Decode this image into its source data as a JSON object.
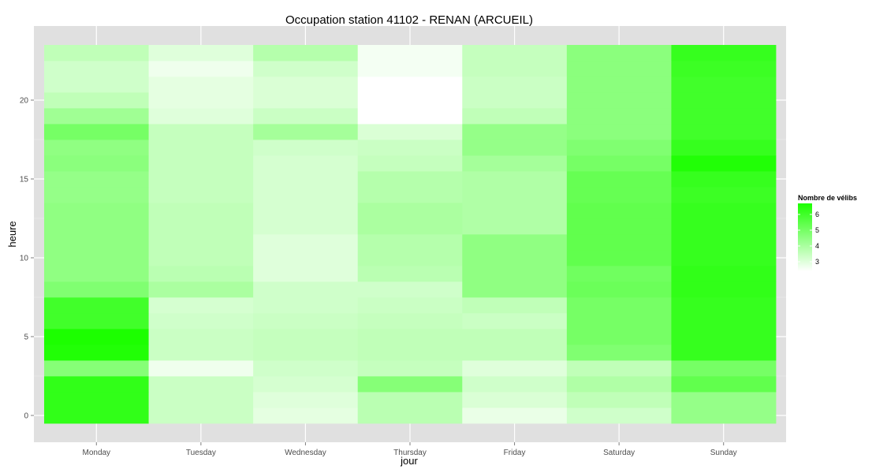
{
  "chart_data": {
    "type": "heatmap",
    "title": "Occupation station 41102 - RENAN (ARCUEIL)",
    "xlabel": "jour",
    "ylabel": "heure",
    "categories": [
      "Monday",
      "Tuesday",
      "Wednesday",
      "Thursday",
      "Friday",
      "Saturday",
      "Sunday"
    ],
    "y": [
      0,
      1,
      2,
      3,
      4,
      5,
      6,
      7,
      8,
      9,
      10,
      11,
      12,
      13,
      14,
      15,
      16,
      17,
      18,
      19,
      20,
      21,
      22,
      23
    ],
    "y_ticks": [
      0,
      5,
      10,
      15,
      20
    ],
    "ylim": [
      -0.5,
      23.5
    ],
    "grid": true,
    "values": [
      [
        6.3,
        3.4,
        2.9,
        3.7,
        2.8,
        3.3,
        4.4
      ],
      [
        6.3,
        3.4,
        3.0,
        3.7,
        3.1,
        3.6,
        4.4
      ],
      [
        6.3,
        3.4,
        3.2,
        4.7,
        3.3,
        3.9,
        5.4
      ],
      [
        4.7,
        2.7,
        3.3,
        3.5,
        3.0,
        3.6,
        5.0
      ],
      [
        6.6,
        3.4,
        3.5,
        3.6,
        3.6,
        4.8,
        6.2
      ],
      [
        6.7,
        3.4,
        3.5,
        3.6,
        3.6,
        5.0,
        6.2
      ],
      [
        6.0,
        3.3,
        3.4,
        3.5,
        3.4,
        5.0,
        6.2
      ],
      [
        6.0,
        3.2,
        3.3,
        3.4,
        3.6,
        5.0,
        6.2
      ],
      [
        4.8,
        4.0,
        3.3,
        3.3,
        4.5,
        5.2,
        6.3
      ],
      [
        4.5,
        3.7,
        3.0,
        3.7,
        4.5,
        5.1,
        6.3
      ],
      [
        4.5,
        3.6,
        3.0,
        3.8,
        4.5,
        5.4,
        6.2
      ],
      [
        4.5,
        3.6,
        3.0,
        3.8,
        4.5,
        5.4,
        6.2
      ],
      [
        4.5,
        3.6,
        3.2,
        4.0,
        3.9,
        5.4,
        6.2
      ],
      [
        4.5,
        3.6,
        3.2,
        4.0,
        3.9,
        5.4,
        6.2
      ],
      [
        4.4,
        3.5,
        3.2,
        3.8,
        3.9,
        5.3,
        6.1
      ],
      [
        4.4,
        3.5,
        3.2,
        3.8,
        3.9,
        5.3,
        6.2
      ],
      [
        4.6,
        3.5,
        3.2,
        3.5,
        4.1,
        5.0,
        6.6
      ],
      [
        4.5,
        3.5,
        3.3,
        3.4,
        4.4,
        4.8,
        6.2
      ],
      [
        5.0,
        3.5,
        4.1,
        3.1,
        4.4,
        4.6,
        6.0
      ],
      [
        4.2,
        3.0,
        3.4,
        2.4,
        3.6,
        4.6,
        6.0
      ],
      [
        3.6,
        2.9,
        3.1,
        2.4,
        3.4,
        4.6,
        6.0
      ],
      [
        3.3,
        2.9,
        3.1,
        2.4,
        3.4,
        4.6,
        6.0
      ],
      [
        3.3,
        2.7,
        3.3,
        2.6,
        3.5,
        4.6,
        6.1
      ],
      [
        3.6,
        3.0,
        3.8,
        2.6,
        3.5,
        4.6,
        6.2
      ]
    ],
    "legend": {
      "title": "Nombre de vélibs",
      "labels": [
        "6",
        "5",
        "4",
        "3"
      ],
      "breaks": [
        6,
        5,
        4,
        3
      ],
      "range": [
        2.4,
        6.7
      ],
      "placement": "right"
    },
    "colors": {
      "low": "#ffffff",
      "high": "#1cff00",
      "panel_background": "#e0e0e0",
      "grid": "#ffffff"
    }
  }
}
